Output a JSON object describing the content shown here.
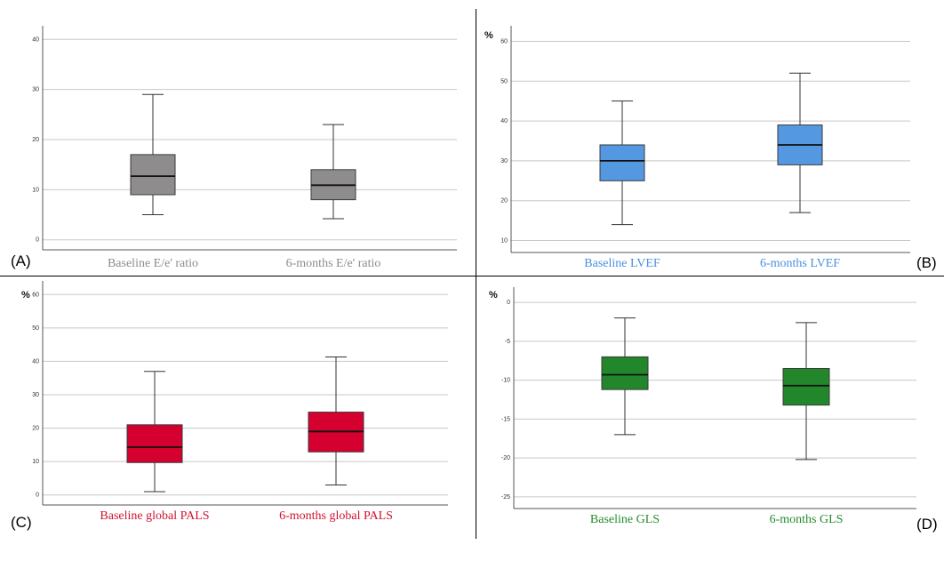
{
  "chart_data": [
    {
      "type": "box",
      "panel_label": "(A)",
      "unit_label": "",
      "ylim": [
        -2,
        42
      ],
      "y_ticks": [
        "40",
        "30",
        "20",
        "10",
        "0"
      ],
      "y_tick_values": [
        40,
        30,
        20,
        10,
        0
      ],
      "grid": true,
      "box_color": "#8e8c8d",
      "label_color": "#8c8c8c",
      "categories": [
        "Baseline E/e' ratio",
        "6-months E/e' ratio"
      ],
      "boxes": [
        {
          "min": 5,
          "q1": 9,
          "median": 12.7,
          "q3": 17,
          "max": 29
        },
        {
          "min": 4.2,
          "q1": 8,
          "median": 10.9,
          "q3": 14,
          "max": 23
        }
      ]
    },
    {
      "type": "box",
      "panel_label": "(B)",
      "unit_label": "%",
      "ylim": [
        7,
        63
      ],
      "y_ticks": [
        "60",
        "50",
        "40",
        "30",
        "20",
        "10"
      ],
      "y_tick_values": [
        60,
        50,
        40,
        30,
        20,
        10
      ],
      "grid": true,
      "box_color": "#5598e2",
      "label_color": "#4a8fdf",
      "categories": [
        "Baseline LVEF",
        "6-months LVEF"
      ],
      "boxes": [
        {
          "min": 14,
          "q1": 25,
          "median": 30,
          "q3": 34,
          "max": 45
        },
        {
          "min": 17,
          "q1": 29,
          "median": 34,
          "q3": 39,
          "max": 52
        }
      ]
    },
    {
      "type": "box",
      "panel_label": "(C)",
      "unit_label": "%",
      "ylim": [
        -3,
        63
      ],
      "y_ticks": [
        "60",
        "50",
        "40",
        "30",
        "20",
        "10",
        "0"
      ],
      "y_tick_values": [
        60,
        50,
        40,
        30,
        20,
        10,
        0
      ],
      "grid": true,
      "box_color": "#d5002f",
      "label_color": "#d0112f",
      "categories": [
        "Baseline global PALS",
        "6-months global PALS"
      ],
      "boxes": [
        {
          "min": 1,
          "q1": 9.7,
          "median": 14.3,
          "q3": 21,
          "max": 37
        },
        {
          "min": 3,
          "q1": 12.9,
          "median": 19,
          "q3": 24.8,
          "max": 41.3
        }
      ]
    },
    {
      "type": "box",
      "panel_label": "(D)",
      "unit_label": "%",
      "ylim": [
        -26.5,
        1.5
      ],
      "y_ticks": [
        "0",
        "-5",
        "-10",
        "-15",
        "-20",
        "-25"
      ],
      "y_tick_values": [
        0,
        -5,
        -10,
        -15,
        -20,
        -25
      ],
      "grid": true,
      "box_color": "#22862b",
      "label_color": "#238c2b",
      "categories": [
        "Baseline GLS",
        "6-months GLS"
      ],
      "boxes": [
        {
          "min": -17,
          "q1": -11.2,
          "median": -9.3,
          "q3": -7,
          "max": -2
        },
        {
          "min": -20.2,
          "q1": -13.2,
          "median": -10.7,
          "q3": -8.5,
          "max": -2.6
        }
      ]
    }
  ]
}
